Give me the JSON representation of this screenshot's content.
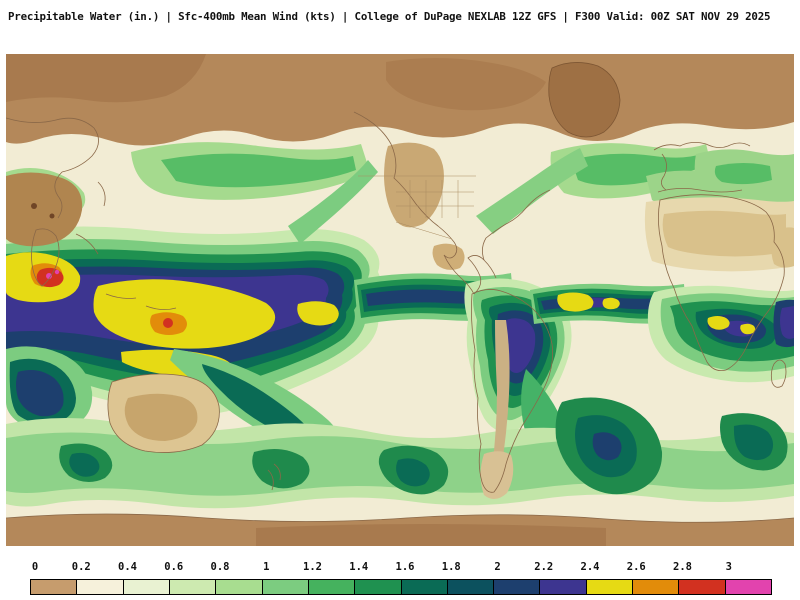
{
  "header": {
    "full_title": "Precipitable Water (in.) | Sfc-400mb Mean Wind (kts) | College of DuPage NEXLAB 12Z GFS | F300 Valid: 00Z SAT NOV 29 2025"
  },
  "chart_data": {
    "type": "heatmap",
    "title": "Precipitable Water (in.)",
    "overlay": "Sfc-400mb Mean Wind (kts)",
    "source": "College of DuPage NEXLAB",
    "model_run": "12Z GFS",
    "forecast_hour": "F300",
    "valid_time": "00Z SAT NOV 29 2025",
    "units": "in.",
    "colorbar": {
      "position": "bottom",
      "range": [
        0,
        3
      ],
      "tick_labels": [
        "0",
        "0.2",
        "0.4",
        "0.6",
        "0.8",
        "1",
        "1.2",
        "1.4",
        "1.6",
        "1.8",
        "2",
        "2.2",
        "2.4",
        "2.6",
        "2.8",
        "3"
      ],
      "segment_colors": [
        "#c69c6d",
        "#f6f1db",
        "#e9f2d2",
        "#cdeab0",
        "#a8dd90",
        "#7ccc80",
        "#45b25e",
        "#1f9150",
        "#0a6b55",
        "#0c515e",
        "#1d3f6e",
        "#3d3590",
        "#e6da14",
        "#e28c0a",
        "#d23120",
        "#e243ae"
      ]
    }
  }
}
